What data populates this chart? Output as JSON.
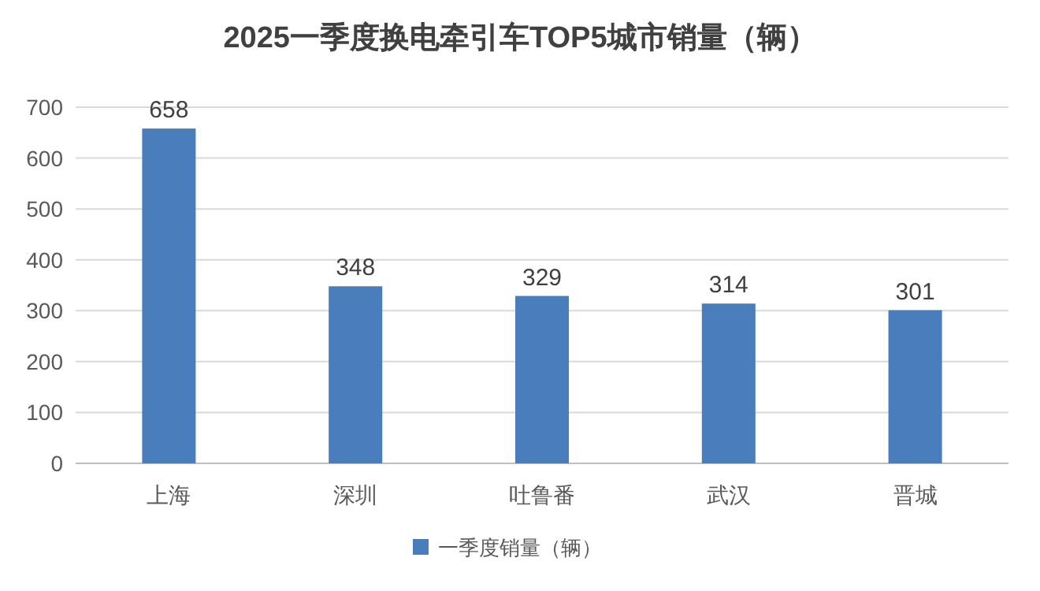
{
  "chart_data": {
    "type": "bar",
    "title": "2025一季度换电牵引车TOP5城市销量（辆）",
    "categories": [
      "上海",
      "深圳",
      "吐鲁番",
      "武汉",
      "晋城"
    ],
    "series": [
      {
        "name": "一季度销量（辆）",
        "color": "#4a7dbb",
        "values": [
          658,
          348,
          329,
          314,
          301
        ]
      }
    ],
    "ylim": [
      0,
      700
    ],
    "yticks": [
      0,
      100,
      200,
      300,
      400,
      500,
      600,
      700
    ],
    "grid": "y",
    "legend": "bottom",
    "data_labels": true
  }
}
